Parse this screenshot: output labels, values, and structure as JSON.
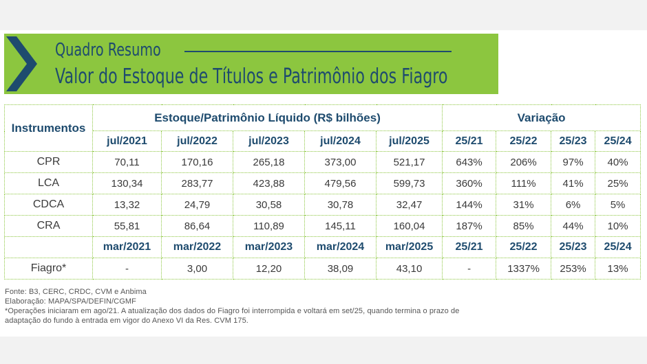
{
  "title": {
    "line1": "Quadro Resumo",
    "line2": "Valor do Estoque de Títulos e Patrimônio dos Fiagro"
  },
  "table": {
    "instruments_header": "Instrumentos",
    "stock_header": "Estoque/Patrimônio Líquido  (R$ bilhões)",
    "variation_header": "Variação",
    "periods": [
      "jul/2021",
      "jul/2022",
      "jul/2023",
      "jul/2024",
      "jul/2025"
    ],
    "variation_periods": [
      "25/21",
      "25/22",
      "25/23",
      "25/24"
    ],
    "rows": [
      {
        "label": "CPR",
        "values": [
          "70,11",
          "170,16",
          "265,18",
          "373,00",
          "521,17"
        ],
        "variations": [
          "643%",
          "206%",
          "97%",
          "40%"
        ]
      },
      {
        "label": "LCA",
        "values": [
          "130,34",
          "283,77",
          "423,88",
          "479,56",
          "599,73"
        ],
        "variations": [
          "360%",
          "111%",
          "41%",
          "25%"
        ]
      },
      {
        "label": "CDCA",
        "values": [
          "13,32",
          "24,79",
          "30,58",
          "30,78",
          "32,47"
        ],
        "variations": [
          "144%",
          "31%",
          "6%",
          "5%"
        ]
      },
      {
        "label": "CRA",
        "values": [
          "55,81",
          "86,64",
          "110,89",
          "145,11",
          "160,04"
        ],
        "variations": [
          "187%",
          "85%",
          "44%",
          "10%"
        ]
      }
    ],
    "fiagro_periods": [
      "mar/2021",
      "mar/2022",
      "mar/2023",
      "mar/2024",
      "mar/2025"
    ],
    "fiagro_variation_periods": [
      "25/21",
      "25/22",
      "25/23",
      "25/24"
    ],
    "fiagro": {
      "label": "Fiagro*",
      "values": [
        "-",
        "3,00",
        "12,20",
        "38,09",
        "43,10"
      ],
      "variations": [
        "-",
        "1337%",
        "253%",
        "13%"
      ]
    }
  },
  "notes": [
    "Fonte: B3, CERC, CRDC, CVM e Anbima",
    "Elaboração: MAPA/SPA/DEFIN/CGMF",
    "*Operações iniciaram em ago/21. A atualização dos dados do Fiagro foi interrompida e voltará em set/25, quando termina o prazo de",
    "adaptação do fundo à entrada em vigor do Anexo VI da Res. CVM 175."
  ],
  "colors": {
    "banner": "#8cc63f",
    "navy": "#1e4b6e",
    "grid": "#8cc63f"
  }
}
